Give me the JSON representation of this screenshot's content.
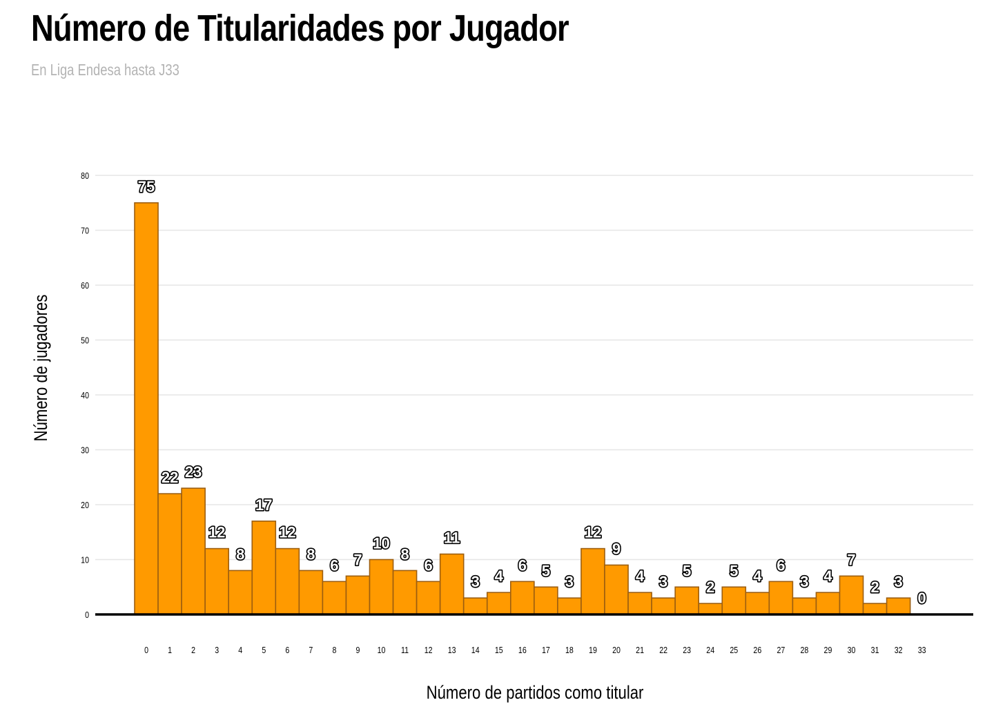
{
  "chart_data": {
    "type": "bar",
    "title": "Número de Titularidades por Jugador",
    "subtitle": "En Liga Endesa hasta J33",
    "xlabel": "Número de partidos como titular",
    "ylabel": "Número de jugadores",
    "categories": [
      "0",
      "1",
      "2",
      "3",
      "4",
      "5",
      "6",
      "7",
      "8",
      "9",
      "10",
      "11",
      "12",
      "13",
      "14",
      "15",
      "16",
      "17",
      "18",
      "19",
      "20",
      "21",
      "22",
      "23",
      "24",
      "25",
      "26",
      "27",
      "28",
      "29",
      "30",
      "31",
      "32",
      "33"
    ],
    "values": [
      75,
      22,
      23,
      12,
      8,
      17,
      12,
      8,
      6,
      7,
      10,
      8,
      6,
      11,
      3,
      4,
      6,
      5,
      3,
      12,
      9,
      4,
      3,
      5,
      2,
      5,
      4,
      6,
      3,
      4,
      7,
      2,
      3,
      0
    ],
    "ylim": [
      0,
      80
    ],
    "yticks": [
      0,
      10,
      20,
      30,
      40,
      50,
      60,
      70,
      80
    ],
    "grid": true,
    "colors": {
      "bar_fill": "#FF9A00",
      "bar_stroke": "#9C5E10",
      "grid": "#e6e6e6",
      "axis": "#000000",
      "subtitle": "#b3b3b3"
    }
  }
}
